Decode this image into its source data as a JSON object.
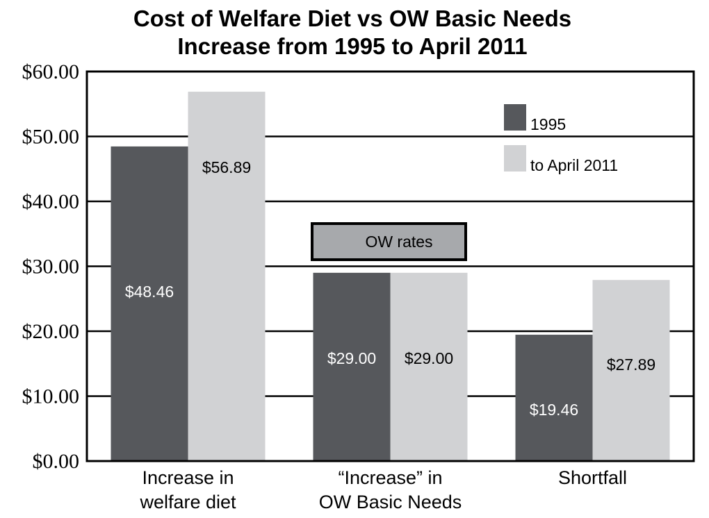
{
  "chart_data": {
    "type": "bar",
    "title_lines": [
      "Cost of Welfare Diet vs OW Basic Needs",
      "Increase from 1995 to April 2011"
    ],
    "categories": [
      [
        "Increase in",
        "welfare diet"
      ],
      [
        "“Increase” in",
        "OW Basic Needs"
      ],
      [
        "Shortfall"
      ]
    ],
    "series": [
      {
        "name": "1995",
        "color": "#56585c",
        "label_color": "#ffffff",
        "values": [
          48.46,
          29.0,
          19.46
        ],
        "labels": [
          "$48.46",
          "$29.00",
          "$19.46"
        ]
      },
      {
        "name": "to April 2011",
        "color": "#d1d2d4",
        "label_color": "#000000",
        "values": [
          56.89,
          29.0,
          27.89
        ],
        "labels": [
          "$56.89",
          "$29.00",
          "$27.89"
        ]
      }
    ],
    "ylim": [
      0,
      60
    ],
    "yticks": [
      0,
      10,
      20,
      30,
      40,
      50,
      60
    ],
    "ytick_labels": [
      "$0.00",
      "$10.00",
      "$20.00",
      "$30.00",
      "$40.00",
      "$50.00",
      "$60.00"
    ],
    "grid": true,
    "legend_position": "top-right",
    "annotation": "OW rates"
  }
}
